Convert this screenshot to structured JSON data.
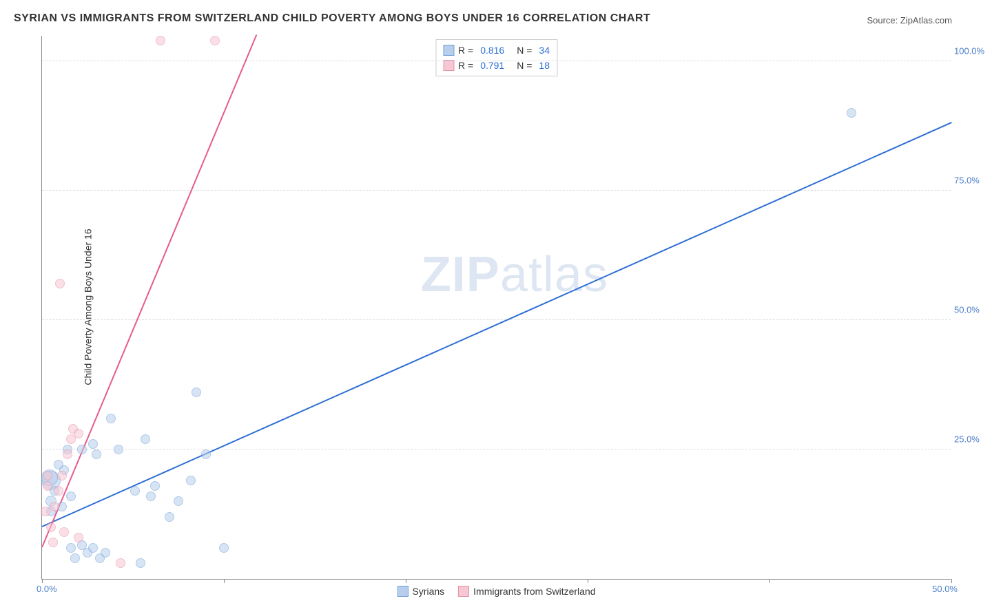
{
  "title": "SYRIAN VS IMMIGRANTS FROM SWITZERLAND CHILD POVERTY AMONG BOYS UNDER 16 CORRELATION CHART",
  "source_prefix": "Source: ",
  "source_name": "ZipAtlas.com",
  "y_axis_label": "Child Poverty Among Boys Under 16",
  "watermark_bold": "ZIP",
  "watermark_rest": "atlas",
  "chart": {
    "type": "scatter",
    "background_color": "#ffffff",
    "grid_color": "#dddddd",
    "axis_color": "#888888",
    "tick_color": "#4a7ec9",
    "tick_fontsize": 13,
    "title_fontsize": 16,
    "label_fontsize": 14,
    "xlim": [
      0,
      50
    ],
    "ylim": [
      0,
      105
    ],
    "x_ticks": [
      0,
      10,
      20,
      30,
      40,
      50
    ],
    "x_tick_labels": {
      "0": "0.0%",
      "50": "50.0%"
    },
    "y_ticks": [
      25,
      50,
      75,
      100
    ],
    "y_tick_labels": {
      "25": "25.0%",
      "50": "50.0%",
      "75": "75.0%",
      "100": "100.0%"
    },
    "series": [
      {
        "name": "Syrians",
        "fill_color": "#b7ceec",
        "stroke_color": "#6f9fd8",
        "line_color": "#2e6fd6",
        "fill_opacity": 0.55,
        "marker_radius": 7,
        "line_width": 2,
        "R_label": "R =",
        "R_value": "0.816",
        "N_label": "N =",
        "N_value": "34",
        "regression": {
          "x1": 0,
          "y1": 10,
          "x2": 50,
          "y2": 88
        },
        "points": [
          {
            "x": 0.5,
            "y": 19,
            "r": 14
          },
          {
            "x": 0.4,
            "y": 19.5,
            "r": 12
          },
          {
            "x": 0.5,
            "y": 15,
            "r": 8
          },
          {
            "x": 0.5,
            "y": 13,
            "r": 7
          },
          {
            "x": 0.7,
            "y": 17,
            "r": 7
          },
          {
            "x": 0.9,
            "y": 22,
            "r": 7
          },
          {
            "x": 1.1,
            "y": 14,
            "r": 7
          },
          {
            "x": 1.2,
            "y": 21,
            "r": 7
          },
          {
            "x": 1.4,
            "y": 25,
            "r": 7
          },
          {
            "x": 1.6,
            "y": 16,
            "r": 7
          },
          {
            "x": 1.6,
            "y": 6,
            "r": 7
          },
          {
            "x": 1.8,
            "y": 4,
            "r": 7
          },
          {
            "x": 2.2,
            "y": 6.5,
            "r": 7
          },
          {
            "x": 2.2,
            "y": 25,
            "r": 7
          },
          {
            "x": 2.5,
            "y": 5,
            "r": 7
          },
          {
            "x": 2.8,
            "y": 6,
            "r": 7
          },
          {
            "x": 2.8,
            "y": 26,
            "r": 7
          },
          {
            "x": 3.0,
            "y": 24,
            "r": 7
          },
          {
            "x": 3.2,
            "y": 4,
            "r": 7
          },
          {
            "x": 3.5,
            "y": 5,
            "r": 7
          },
          {
            "x": 3.8,
            "y": 31,
            "r": 7
          },
          {
            "x": 4.2,
            "y": 25,
            "r": 7
          },
          {
            "x": 5.1,
            "y": 17,
            "r": 7
          },
          {
            "x": 5.4,
            "y": 3,
            "r": 7
          },
          {
            "x": 5.7,
            "y": 27,
            "r": 7
          },
          {
            "x": 6.0,
            "y": 16,
            "r": 7
          },
          {
            "x": 6.2,
            "y": 18,
            "r": 7
          },
          {
            "x": 7.0,
            "y": 12,
            "r": 7
          },
          {
            "x": 7.5,
            "y": 15,
            "r": 7
          },
          {
            "x": 8.2,
            "y": 19,
            "r": 7
          },
          {
            "x": 8.5,
            "y": 36,
            "r": 7
          },
          {
            "x": 9.0,
            "y": 24,
            "r": 7
          },
          {
            "x": 10.0,
            "y": 6,
            "r": 7
          },
          {
            "x": 44.5,
            "y": 90,
            "r": 7
          }
        ]
      },
      {
        "name": "Immigrants from Switzerland",
        "fill_color": "#f6c8d3",
        "stroke_color": "#e890a8",
        "line_color": "#e75a8a",
        "fill_opacity": 0.55,
        "marker_radius": 7,
        "line_width": 2,
        "R_label": "R =",
        "R_value": "0.791",
        "N_label": "N =",
        "N_value": "18",
        "regression": {
          "x1": 0,
          "y1": 6,
          "x2": 11.8,
          "y2": 105
        },
        "points": [
          {
            "x": 0.2,
            "y": 13,
            "r": 7
          },
          {
            "x": 0.3,
            "y": 18,
            "r": 7
          },
          {
            "x": 0.3,
            "y": 20,
            "r": 7
          },
          {
            "x": 0.5,
            "y": 10,
            "r": 7
          },
          {
            "x": 0.6,
            "y": 7,
            "r": 7
          },
          {
            "x": 0.7,
            "y": 14,
            "r": 7
          },
          {
            "x": 0.9,
            "y": 17,
            "r": 7
          },
          {
            "x": 1.1,
            "y": 20,
            "r": 7
          },
          {
            "x": 1.0,
            "y": 57,
            "r": 7
          },
          {
            "x": 1.2,
            "y": 9,
            "r": 7
          },
          {
            "x": 1.4,
            "y": 24,
            "r": 7
          },
          {
            "x": 1.6,
            "y": 27,
            "r": 7
          },
          {
            "x": 1.7,
            "y": 29,
            "r": 7
          },
          {
            "x": 2.0,
            "y": 28,
            "r": 7
          },
          {
            "x": 2.0,
            "y": 8,
            "r": 7
          },
          {
            "x": 4.3,
            "y": 3,
            "r": 7
          },
          {
            "x": 6.5,
            "y": 104,
            "r": 7
          },
          {
            "x": 9.5,
            "y": 104,
            "r": 7
          }
        ]
      }
    ]
  }
}
